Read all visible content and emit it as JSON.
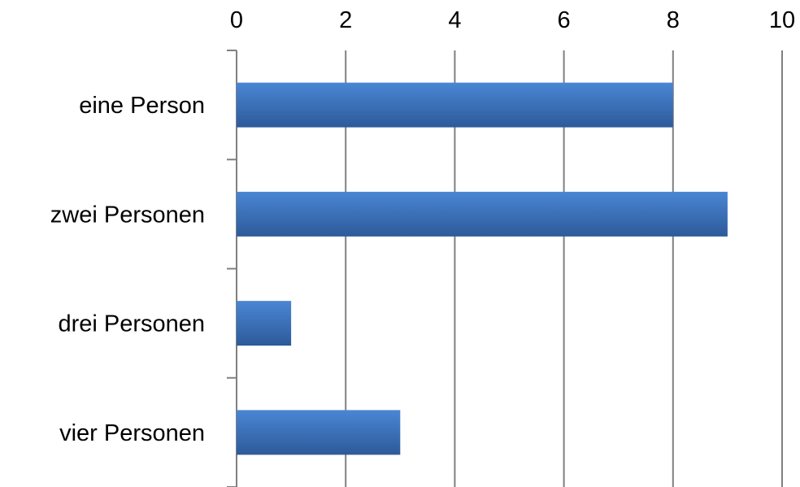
{
  "chart_data": {
    "type": "bar",
    "orientation": "horizontal",
    "title": "",
    "xlabel": "",
    "ylabel": "",
    "categories": [
      "eine Person",
      "zwei Personen",
      "drei Personen",
      "vier Personen"
    ],
    "values": [
      8,
      9,
      1,
      3
    ],
    "xlim": [
      0,
      10
    ],
    "x_ticks": [
      0,
      2,
      4,
      6,
      8,
      10
    ],
    "x_tick_labels": [
      "0",
      "2",
      "4",
      "6",
      "8",
      "10"
    ],
    "x_axis_position": "top",
    "grid": true,
    "legend": "none",
    "bar_color": "#3a6fb8",
    "bar_color_top": "#4a86d4",
    "bar_color_bottom": "#2d5a9a",
    "grid_color": "#808080"
  }
}
